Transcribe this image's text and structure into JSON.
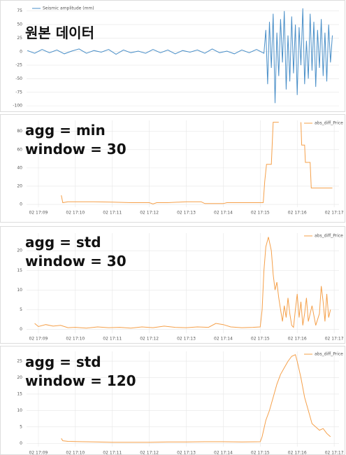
{
  "chart_data": [
    {
      "type": "line",
      "annotation": [
        "원본 데이터"
      ],
      "legend": "upper left",
      "series": [
        {
          "name": "Seismic amplitude (mm)",
          "color": "#4a8fc8",
          "x": [
            8.7,
            8.9,
            9.1,
            9.3,
            9.5,
            9.7,
            9.9,
            10.1,
            10.3,
            10.5,
            10.7,
            10.9,
            11.1,
            11.3,
            11.5,
            11.7,
            11.9,
            12.1,
            12.3,
            12.5,
            12.7,
            12.9,
            13.1,
            13.3,
            13.5,
            13.7,
            13.9,
            14.1,
            14.3,
            14.5,
            14.7,
            14.9,
            15.1,
            15.15,
            15.2,
            15.25,
            15.3,
            15.35,
            15.4,
            15.45,
            15.5,
            15.55,
            15.6,
            15.65,
            15.7,
            15.75,
            15.8,
            15.85,
            15.9,
            15.95,
            16.0,
            16.05,
            16.1,
            16.15,
            16.2,
            16.25,
            16.3,
            16.35,
            16.4,
            16.45,
            16.5,
            16.55,
            16.6,
            16.65,
            16.7,
            16.75,
            16.8,
            16.85,
            16.9,
            16.95
          ],
          "values": [
            2,
            -3,
            4,
            -2,
            3,
            -4,
            1,
            5,
            -3,
            2,
            -1,
            4,
            -5,
            3,
            -2,
            1,
            -3,
            4,
            -2,
            3,
            -4,
            2,
            -1,
            3,
            -3,
            5,
            -2,
            1,
            -4,
            3,
            -2,
            4,
            -3,
            40,
            -60,
            55,
            -30,
            70,
            -95,
            35,
            -45,
            60,
            -20,
            75,
            -70,
            30,
            -55,
            65,
            -40,
            50,
            -80,
            45,
            -25,
            80,
            -60,
            20,
            -50,
            70,
            -35,
            55,
            -65,
            40,
            -30,
            60,
            -45,
            35,
            -55,
            50,
            -20,
            30
          ]
        }
      ],
      "xlim": [
        8.68,
        17.13
      ],
      "ylim": [
        -105,
        85
      ],
      "yticks": [
        -100,
        -75,
        -50,
        -25,
        0,
        25,
        50,
        75
      ],
      "grid": true
    },
    {
      "type": "line",
      "annotation": [
        "agg  = min",
        "window = 30"
      ],
      "legend": "upper right",
      "series": [
        {
          "name": "abs_diff_Price",
          "color": "#f5a04a",
          "x": [
            9.62,
            9.66,
            9.8,
            10.5,
            11,
            11.5,
            12.0,
            12.1,
            12.2,
            12.5,
            13.0,
            13.4,
            13.5,
            14.0,
            14.1,
            14.5,
            15.0,
            15.08,
            15.12,
            15.17,
            15.3,
            15.35,
            15.5,
            15.7,
            16.1,
            16.12,
            16.2,
            16.22,
            16.35,
            16.38,
            16.95
          ],
          "values": [
            10,
            2,
            3,
            3,
            2.5,
            2,
            2,
            0.5,
            2,
            2,
            3,
            3,
            1,
            1,
            2,
            2,
            2,
            2,
            25,
            44,
            44,
            90,
            90,
            null,
            90,
            65,
            65,
            46,
            46,
            18,
            18
          ]
        }
      ],
      "xlim": [
        8.68,
        17.13
      ],
      "ylim": [
        -3,
        92
      ],
      "yticks": [
        0,
        20,
        40,
        60,
        80
      ],
      "xticks": [
        {
          "value": 9,
          "label": "02 17:09"
        },
        {
          "value": 10,
          "label": "02 17:10"
        },
        {
          "value": 11,
          "label": "02 17:11"
        },
        {
          "value": 12,
          "label": "02 17:12"
        },
        {
          "value": 13,
          "label": "02 17:13"
        },
        {
          "value": 14,
          "label": "02 17:14"
        },
        {
          "value": 15,
          "label": "02 17:15"
        },
        {
          "value": 16,
          "label": "02 17:16"
        },
        {
          "value": 17,
          "label": "02 17:17"
        }
      ],
      "grid": true
    },
    {
      "type": "line",
      "annotation": [
        "agg = std",
        "window = 30"
      ],
      "legend": "upper right",
      "series": [
        {
          "name": "abs_diff_Price",
          "color": "#f5a04a",
          "x": [
            8.9,
            9.0,
            9.2,
            9.4,
            9.6,
            9.8,
            10.0,
            10.3,
            10.6,
            10.9,
            11.2,
            11.5,
            11.8,
            12.1,
            12.4,
            12.7,
            13.0,
            13.3,
            13.6,
            13.8,
            14.0,
            14.2,
            14.5,
            14.8,
            15.0,
            15.05,
            15.1,
            15.15,
            15.22,
            15.3,
            15.35,
            15.4,
            15.45,
            15.5,
            15.55,
            15.6,
            15.65,
            15.7,
            15.75,
            15.8,
            15.85,
            15.9,
            15.95,
            16.0,
            16.05,
            16.1,
            16.15,
            16.2,
            16.25,
            16.3,
            16.4,
            16.5,
            16.6,
            16.65,
            16.7,
            16.75,
            16.8,
            16.85,
            16.9
          ],
          "values": [
            1.5,
            0.7,
            1.2,
            0.8,
            1.0,
            0.4,
            0.5,
            0.3,
            0.6,
            0.4,
            0.5,
            0.3,
            0.6,
            0.4,
            0.8,
            0.5,
            0.4,
            0.6,
            0.5,
            1.5,
            1.2,
            0.6,
            0.4,
            0.5,
            0.6,
            5,
            15,
            21,
            23.5,
            20,
            14,
            10,
            12,
            8,
            5,
            2,
            6,
            3,
            8,
            4,
            1,
            0.5,
            5,
            9,
            3,
            7,
            1,
            4,
            8,
            2,
            6,
            1,
            4,
            11,
            7,
            2,
            9,
            3,
            5
          ]
        }
      ],
      "xlim": [
        8.68,
        17.13
      ],
      "ylim": [
        -1,
        24.5
      ],
      "yticks": [
        0,
        5,
        10,
        15,
        20
      ],
      "xticks": [
        {
          "value": 9,
          "label": "02 17:09"
        },
        {
          "value": 10,
          "label": "02 17:10"
        },
        {
          "value": 11,
          "label": "02 17:11"
        },
        {
          "value": 12,
          "label": "02 17:12"
        },
        {
          "value": 13,
          "label": "02 17:13"
        },
        {
          "value": 14,
          "label": "02 17:14"
        },
        {
          "value": 15,
          "label": "02 17:15"
        },
        {
          "value": 16,
          "label": "02 17:16"
        },
        {
          "value": 17,
          "label": "02 17:17"
        }
      ],
      "grid": true
    },
    {
      "type": "line",
      "annotation": [
        "agg = std",
        "window = 120"
      ],
      "legend": "upper right",
      "series": [
        {
          "name": "abs_diff_Price",
          "color": "#f5a04a",
          "x": [
            9.62,
            9.66,
            9.8,
            10.2,
            10.6,
            11,
            11.5,
            12,
            12.5,
            13,
            13.5,
            14,
            14.5,
            15.0,
            15.05,
            15.15,
            15.25,
            15.35,
            15.45,
            15.55,
            15.65,
            15.75,
            15.85,
            15.95,
            16.0,
            16.1,
            16.2,
            16.3,
            16.4,
            16.5,
            16.6,
            16.7,
            16.8,
            16.9
          ],
          "values": [
            1.5,
            0.8,
            0.6,
            0.5,
            0.4,
            0.3,
            0.3,
            0.3,
            0.4,
            0.4,
            0.5,
            0.5,
            0.4,
            0.5,
            2,
            7,
            10,
            14,
            18,
            21,
            23,
            25,
            26.5,
            27,
            25,
            20,
            14,
            10,
            6,
            5,
            4,
            4.5,
            3,
            2
          ]
        }
      ],
      "xlim": [
        8.68,
        17.13
      ],
      "ylim": [
        -1,
        28
      ],
      "yticks": [
        0,
        5,
        10,
        15,
        20,
        25
      ],
      "xticks": [
        {
          "value": 9,
          "label": "02 17:09"
        },
        {
          "value": 10,
          "label": "02 17:10"
        },
        {
          "value": 11,
          "label": "02 17:11"
        },
        {
          "value": 12,
          "label": "02 17:12"
        },
        {
          "value": 13,
          "label": "02 17:13"
        },
        {
          "value": 14,
          "label": "02 17:14"
        },
        {
          "value": 15,
          "label": "02 17:15"
        },
        {
          "value": 16,
          "label": "02 17:16"
        },
        {
          "value": 17,
          "label": "02 17:17"
        }
      ],
      "grid": true
    }
  ]
}
